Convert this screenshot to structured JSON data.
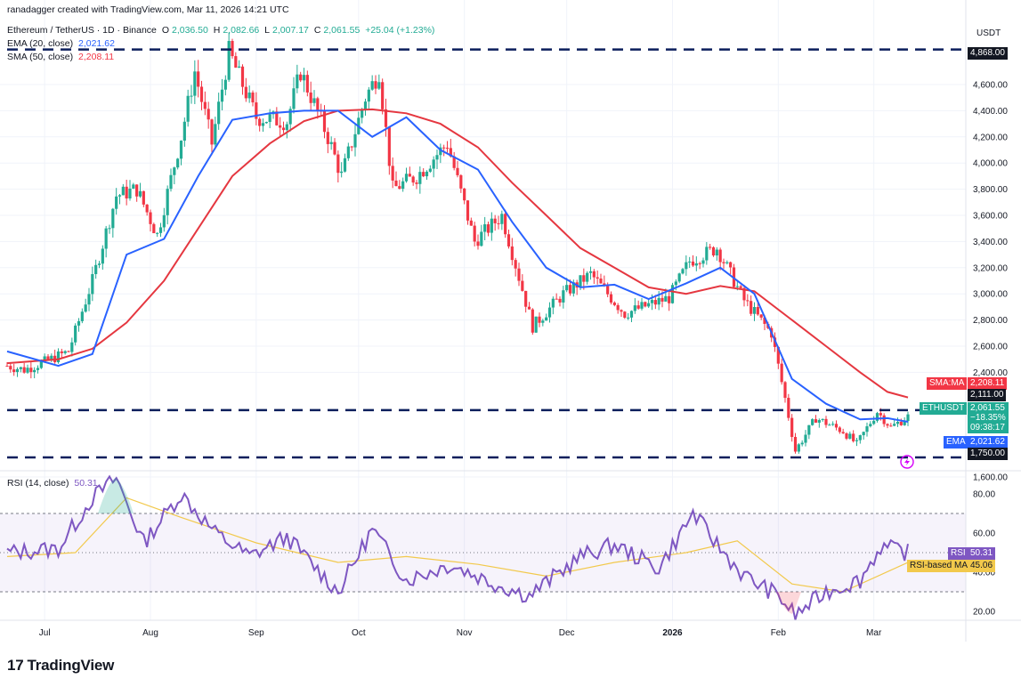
{
  "header": {
    "published_by": "ranadagger created with TradingView.com, Mar 11, 2026 14:21 UTC",
    "symbol_line": "Ethereum / TetherUS · 1D · Binance",
    "ohlc": {
      "o_label": "O",
      "o": "2,036.50",
      "h_label": "H",
      "h": "2,082.66",
      "l_label": "L",
      "l": "2,007.17",
      "c_label": "C",
      "c": "2,061.55",
      "change": "+25.04 (+1.23%)"
    },
    "ema_label": "EMA (20, close)",
    "ema_value": "2,021.62",
    "sma_label": "SMA (50, close)",
    "sma_value": "2,208.11",
    "rsi_label": "RSI (14, close)",
    "rsi_value": "50.31"
  },
  "price_axis": {
    "currency": "USDT",
    "ticks": [
      "4,600.00",
      "4,400.00",
      "4,200.00",
      "4,000.00",
      "3,800.00",
      "3,600.00",
      "3,400.00",
      "3,200.00",
      "3,000.00",
      "2,800.00",
      "2,600.00",
      "2,400.00",
      "1,600.00"
    ]
  },
  "rsi_axis": {
    "ticks": [
      "80.00",
      "60.00",
      "40.00",
      "20.00"
    ]
  },
  "price_tags": {
    "resistance_top": "4,868.00",
    "sma_name": "SMA:MA",
    "sma": "2,208.11",
    "level_2111": "2,111.00",
    "symbol": "ETHUSDT",
    "last": "2,061.55",
    "change": "−18.35%",
    "countdown": "09:38:17",
    "ema_name": "EMA",
    "ema": "2,021.62",
    "support": "1,750.00"
  },
  "rsi_tags": {
    "rsi_name": "RSI",
    "rsi": "50.31",
    "ma_name": "RSI-based MA",
    "ma": "45.06"
  },
  "time_axis": [
    "Jul",
    "Aug",
    "Sep",
    "Oct",
    "Nov",
    "Dec",
    "2026",
    "Feb",
    "Mar"
  ],
  "brand": "TradingView",
  "colors": {
    "up": "#22ab94",
    "down": "#f23645",
    "ema": "#2962ff",
    "sma": "#e53740",
    "rsi": "#7e57c2",
    "rsi_ma": "#f2c94c",
    "level": "#0b1f5c"
  },
  "chart_data": {
    "type": "candlestick",
    "title": "Ethereum / TetherUS · 1D · Binance",
    "x_range": [
      "2025-06-20",
      "2026-03-11"
    ],
    "ylim": [
      1600,
      4950
    ],
    "horizontal_levels": [
      4868,
      2111,
      1750
    ],
    "series": [
      {
        "name": "EMA (20, close)",
        "values": [
          {
            "x": "2025-06-20",
            "y": 2560
          },
          {
            "x": "2025-07-05",
            "y": 2450
          },
          {
            "x": "2025-07-15",
            "y": 2540
          },
          {
            "x": "2025-07-25",
            "y": 3300
          },
          {
            "x": "2025-08-05",
            "y": 3420
          },
          {
            "x": "2025-08-15",
            "y": 3900
          },
          {
            "x": "2025-08-25",
            "y": 4330
          },
          {
            "x": "2025-09-05",
            "y": 4380
          },
          {
            "x": "2025-09-15",
            "y": 4400
          },
          {
            "x": "2025-09-25",
            "y": 4400
          },
          {
            "x": "2025-10-05",
            "y": 4200
          },
          {
            "x": "2025-10-15",
            "y": 4350
          },
          {
            "x": "2025-10-25",
            "y": 4100
          },
          {
            "x": "2025-11-05",
            "y": 3950
          },
          {
            "x": "2025-11-15",
            "y": 3550
          },
          {
            "x": "2025-11-25",
            "y": 3200
          },
          {
            "x": "2025-12-05",
            "y": 3050
          },
          {
            "x": "2025-12-15",
            "y": 3070
          },
          {
            "x": "2025-12-25",
            "y": 2960
          },
          {
            "x": "2026-01-05",
            "y": 3080
          },
          {
            "x": "2026-01-15",
            "y": 3200
          },
          {
            "x": "2026-01-25",
            "y": 3000
          },
          {
            "x": "2026-02-05",
            "y": 2350
          },
          {
            "x": "2026-02-15",
            "y": 2160
          },
          {
            "x": "2026-02-25",
            "y": 2040
          },
          {
            "x": "2026-03-05",
            "y": 2050
          },
          {
            "x": "2026-03-11",
            "y": 2022
          }
        ]
      },
      {
        "name": "SMA (50, close)",
        "values": [
          {
            "x": "2025-06-20",
            "y": 2470
          },
          {
            "x": "2025-07-05",
            "y": 2500
          },
          {
            "x": "2025-07-15",
            "y": 2580
          },
          {
            "x": "2025-07-25",
            "y": 2780
          },
          {
            "x": "2025-08-05",
            "y": 3100
          },
          {
            "x": "2025-08-15",
            "y": 3500
          },
          {
            "x": "2025-08-25",
            "y": 3900
          },
          {
            "x": "2025-09-05",
            "y": 4150
          },
          {
            "x": "2025-09-15",
            "y": 4320
          },
          {
            "x": "2025-09-25",
            "y": 4400
          },
          {
            "x": "2025-10-05",
            "y": 4410
          },
          {
            "x": "2025-10-15",
            "y": 4380
          },
          {
            "x": "2025-10-25",
            "y": 4300
          },
          {
            "x": "2025-11-05",
            "y": 4120
          },
          {
            "x": "2025-11-15",
            "y": 3850
          },
          {
            "x": "2025-11-25",
            "y": 3600
          },
          {
            "x": "2025-12-05",
            "y": 3350
          },
          {
            "x": "2025-12-15",
            "y": 3200
          },
          {
            "x": "2025-12-25",
            "y": 3050
          },
          {
            "x": "2026-01-05",
            "y": 3000
          },
          {
            "x": "2026-01-15",
            "y": 3060
          },
          {
            "x": "2026-01-25",
            "y": 3020
          },
          {
            "x": "2026-02-05",
            "y": 2800
          },
          {
            "x": "2026-02-15",
            "y": 2600
          },
          {
            "x": "2026-02-25",
            "y": 2400
          },
          {
            "x": "2026-03-05",
            "y": 2250
          },
          {
            "x": "2026-03-11",
            "y": 2208
          }
        ]
      },
      {
        "name": "RSI (14, close)",
        "values": [
          {
            "x": "2025-06-20",
            "y": 50
          },
          {
            "x": "2025-07-05",
            "y": 52
          },
          {
            "x": "2025-07-15",
            "y": 78
          },
          {
            "x": "2025-07-22",
            "y": 88
          },
          {
            "x": "2025-07-30",
            "y": 55
          },
          {
            "x": "2025-08-10",
            "y": 80
          },
          {
            "x": "2025-08-20",
            "y": 60
          },
          {
            "x": "2025-08-30",
            "y": 48
          },
          {
            "x": "2025-09-10",
            "y": 58
          },
          {
            "x": "2025-09-25",
            "y": 30
          },
          {
            "x": "2025-10-05",
            "y": 62
          },
          {
            "x": "2025-10-15",
            "y": 36
          },
          {
            "x": "2025-10-28",
            "y": 44
          },
          {
            "x": "2025-11-10",
            "y": 34
          },
          {
            "x": "2025-11-20",
            "y": 28
          },
          {
            "x": "2025-12-05",
            "y": 48
          },
          {
            "x": "2025-12-15",
            "y": 54
          },
          {
            "x": "2025-12-28",
            "y": 42
          },
          {
            "x": "2026-01-07",
            "y": 70
          },
          {
            "x": "2026-01-15",
            "y": 52
          },
          {
            "x": "2026-01-22",
            "y": 38
          },
          {
            "x": "2026-02-01",
            "y": 28
          },
          {
            "x": "2026-02-06",
            "y": 18
          },
          {
            "x": "2026-02-15",
            "y": 30
          },
          {
            "x": "2026-02-25",
            "y": 36
          },
          {
            "x": "2026-03-03",
            "y": 53
          },
          {
            "x": "2026-03-11",
            "y": 50
          }
        ]
      },
      {
        "name": "RSI-based MA",
        "values": [
          {
            "x": "2025-06-20",
            "y": 48
          },
          {
            "x": "2025-07-10",
            "y": 50
          },
          {
            "x": "2025-07-25",
            "y": 78
          },
          {
            "x": "2025-08-10",
            "y": 68
          },
          {
            "x": "2025-09-01",
            "y": 55
          },
          {
            "x": "2025-09-25",
            "y": 45
          },
          {
            "x": "2025-10-15",
            "y": 48
          },
          {
            "x": "2025-11-05",
            "y": 44
          },
          {
            "x": "2025-11-25",
            "y": 38
          },
          {
            "x": "2025-12-15",
            "y": 45
          },
          {
            "x": "2026-01-05",
            "y": 50
          },
          {
            "x": "2026-01-20",
            "y": 56
          },
          {
            "x": "2026-02-05",
            "y": 34
          },
          {
            "x": "2026-02-20",
            "y": 30
          },
          {
            "x": "2026-03-11",
            "y": 45
          }
        ]
      }
    ],
    "price_path": [
      {
        "x": "2025-06-20",
        "y": 2450
      },
      {
        "x": "2025-06-25",
        "y": 2420
      },
      {
        "x": "2025-07-01",
        "y": 2480
      },
      {
        "x": "2025-07-08",
        "y": 2560
      },
      {
        "x": "2025-07-15",
        "y": 3100
      },
      {
        "x": "2025-07-22",
        "y": 3750
      },
      {
        "x": "2025-07-28",
        "y": 3800
      },
      {
        "x": "2025-08-03",
        "y": 3450
      },
      {
        "x": "2025-08-10",
        "y": 4200
      },
      {
        "x": "2025-08-14",
        "y": 4700
      },
      {
        "x": "2025-08-19",
        "y": 4150
      },
      {
        "x": "2025-08-24",
        "y": 4850
      },
      {
        "x": "2025-09-01",
        "y": 4350
      },
      {
        "x": "2025-09-10",
        "y": 4320
      },
      {
        "x": "2025-09-14",
        "y": 4700
      },
      {
        "x": "2025-09-22",
        "y": 4200
      },
      {
        "x": "2025-09-26",
        "y": 3900
      },
      {
        "x": "2025-10-03",
        "y": 4500
      },
      {
        "x": "2025-10-07",
        "y": 4700
      },
      {
        "x": "2025-10-11",
        "y": 3800
      },
      {
        "x": "2025-10-18",
        "y": 3900
      },
      {
        "x": "2025-10-27",
        "y": 4150
      },
      {
        "x": "2025-11-04",
        "y": 3400
      },
      {
        "x": "2025-11-12",
        "y": 3600
      },
      {
        "x": "2025-11-21",
        "y": 2750
      },
      {
        "x": "2025-11-30",
        "y": 3000
      },
      {
        "x": "2025-12-08",
        "y": 3150
      },
      {
        "x": "2025-12-18",
        "y": 2850
      },
      {
        "x": "2025-12-31",
        "y": 2970
      },
      {
        "x": "2026-01-06",
        "y": 3250
      },
      {
        "x": "2026-01-14",
        "y": 3350
      },
      {
        "x": "2026-01-22",
        "y": 2950
      },
      {
        "x": "2026-01-30",
        "y": 2700
      },
      {
        "x": "2026-02-03",
        "y": 2200
      },
      {
        "x": "2026-02-06",
        "y": 1800
      },
      {
        "x": "2026-02-12",
        "y": 2050
      },
      {
        "x": "2026-02-20",
        "y": 1950
      },
      {
        "x": "2026-02-24",
        "y": 1850
      },
      {
        "x": "2026-03-02",
        "y": 2100
      },
      {
        "x": "2026-03-06",
        "y": 1980
      },
      {
        "x": "2026-03-11",
        "y": 2061.55
      }
    ]
  }
}
